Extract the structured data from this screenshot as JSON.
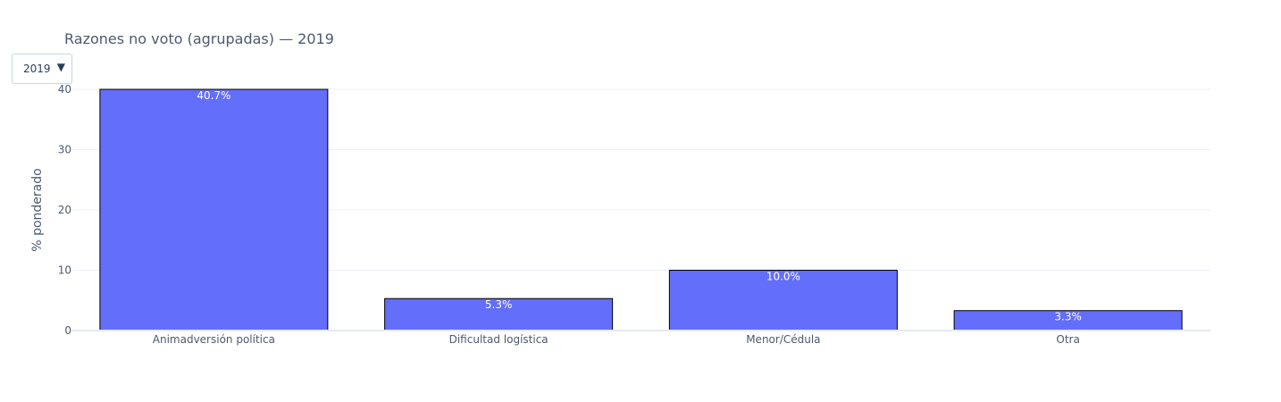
{
  "dropdown": {
    "selected": "2019",
    "caret_icon": "caret-down-icon"
  },
  "chart_data": {
    "type": "bar",
    "title": "Razones no voto (agrupadas) — 2019",
    "xlabel": "",
    "ylabel": "% ponderado",
    "categories": [
      "Animadversión política",
      "Dificultad logística",
      "Menor/Cédula",
      "Otra"
    ],
    "values": [
      40.7,
      5.3,
      10.0,
      3.3
    ],
    "data_labels": [
      "40.7%",
      "5.3%",
      "10.0%",
      "3.3%"
    ],
    "ylim": [
      0,
      40
    ],
    "yticks": [
      0,
      10,
      20,
      30,
      40
    ],
    "grid": true,
    "colors": {
      "bar_fill": "#636efa",
      "bar_stroke": "#000000",
      "label_inside": "#ffffff",
      "label_outside": "#4c5a6e"
    }
  }
}
